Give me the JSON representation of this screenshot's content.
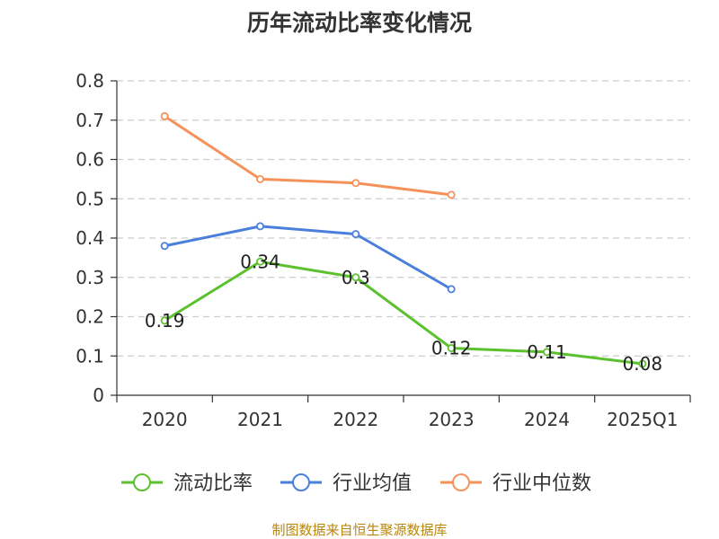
{
  "chart_data": {
    "type": "line",
    "title": "历年流动比率变化情况",
    "categories": [
      "2020",
      "2021",
      "2022",
      "2023",
      "2024",
      "2025Q1"
    ],
    "ylim": [
      0,
      0.8
    ],
    "yticks": [
      "0",
      "0.1",
      "0.2",
      "0.3",
      "0.4",
      "0.5",
      "0.6",
      "0.7",
      "0.8"
    ],
    "grid": true,
    "legend_position": "bottom",
    "series": [
      {
        "name": "流动比率",
        "color": "#5cc12f",
        "values": [
          0.19,
          0.34,
          0.3,
          0.12,
          0.11,
          0.08
        ],
        "labels": [
          "0.19",
          "0.34",
          "0.3",
          "0.12",
          "0.11",
          "0.08"
        ]
      },
      {
        "name": "行业均值",
        "color": "#4a7fdc",
        "values": [
          0.38,
          0.43,
          0.41,
          0.27,
          null,
          null
        ]
      },
      {
        "name": "行业中位数",
        "color": "#f5925a",
        "values": [
          0.71,
          0.55,
          0.54,
          0.51,
          null,
          null
        ]
      }
    ]
  },
  "footer": {
    "source": "制图数据来自恒生聚源数据库"
  }
}
